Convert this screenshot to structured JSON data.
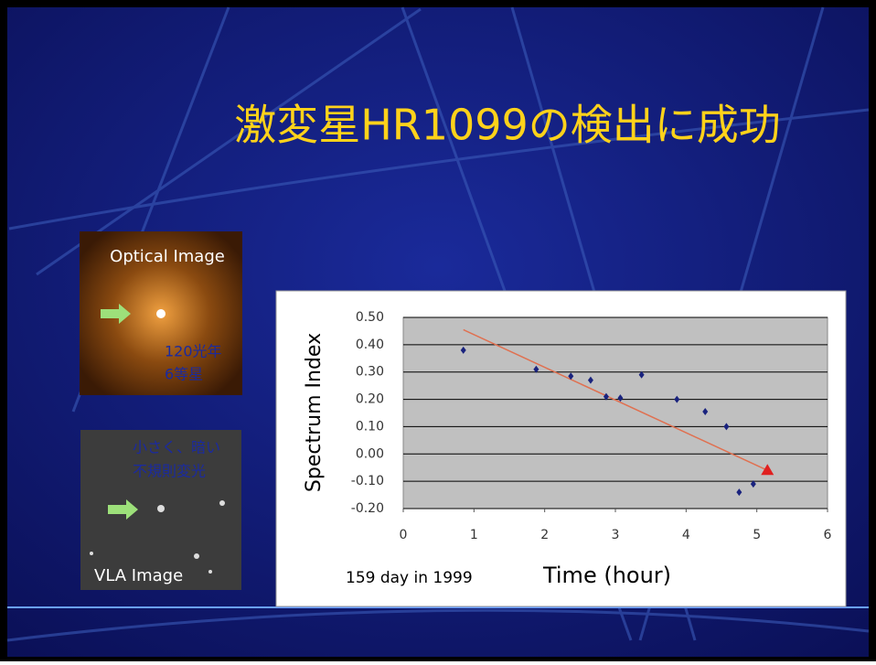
{
  "slide": {
    "title": "激変星HR1099の検出に成功",
    "optical": {
      "label": "Optical Image",
      "notes": [
        "120光年",
        "6等星"
      ]
    },
    "vla": {
      "label": "VLA Image",
      "notes": [
        "小さく、暗い",
        "不規則変光"
      ]
    }
  },
  "chart_data": {
    "type": "scatter",
    "ylabel": "Spectrum Index",
    "xlabel": "Time (hour)",
    "annotation": "159 day in 1999",
    "xlim": [
      0,
      6
    ],
    "xticks": [
      0,
      1,
      2,
      3,
      4,
      5,
      6
    ],
    "ylim": [
      -0.2,
      0.5
    ],
    "yticks": [
      {
        "value": 0.5,
        "label": "0.50"
      },
      {
        "value": 0.4,
        "label": "0.40"
      },
      {
        "value": 0.3,
        "label": "0.30"
      },
      {
        "value": 0.2,
        "label": "0.20"
      },
      {
        "value": 0.1,
        "label": "0.10"
      },
      {
        "value": 0,
        "label": "0.00"
      },
      {
        "value": -0.1,
        "label": "-0.10"
      },
      {
        "value": -0.2,
        "label": "-0.20"
      }
    ],
    "grid": true,
    "series": [
      {
        "color": "#1a237e",
        "marker": "diamond",
        "x": [
          0.85,
          1.88,
          2.37,
          2.65,
          2.87,
          3.07,
          3.37,
          3.87,
          4.27,
          4.57,
          4.75,
          4.95
        ],
        "values": [
          0.38,
          0.31,
          0.285,
          0.27,
          0.21,
          0.205,
          0.29,
          0.2,
          0.155,
          0.1,
          -0.14,
          -0.11
        ]
      },
      {
        "color": "#e02020",
        "marker": "triangle",
        "x": [
          5.15
        ],
        "values": [
          -0.06
        ]
      }
    ],
    "trend": {
      "color": "#e07050",
      "x": [
        0.85,
        5.15
      ],
      "values": [
        0.455,
        -0.06
      ]
    }
  }
}
